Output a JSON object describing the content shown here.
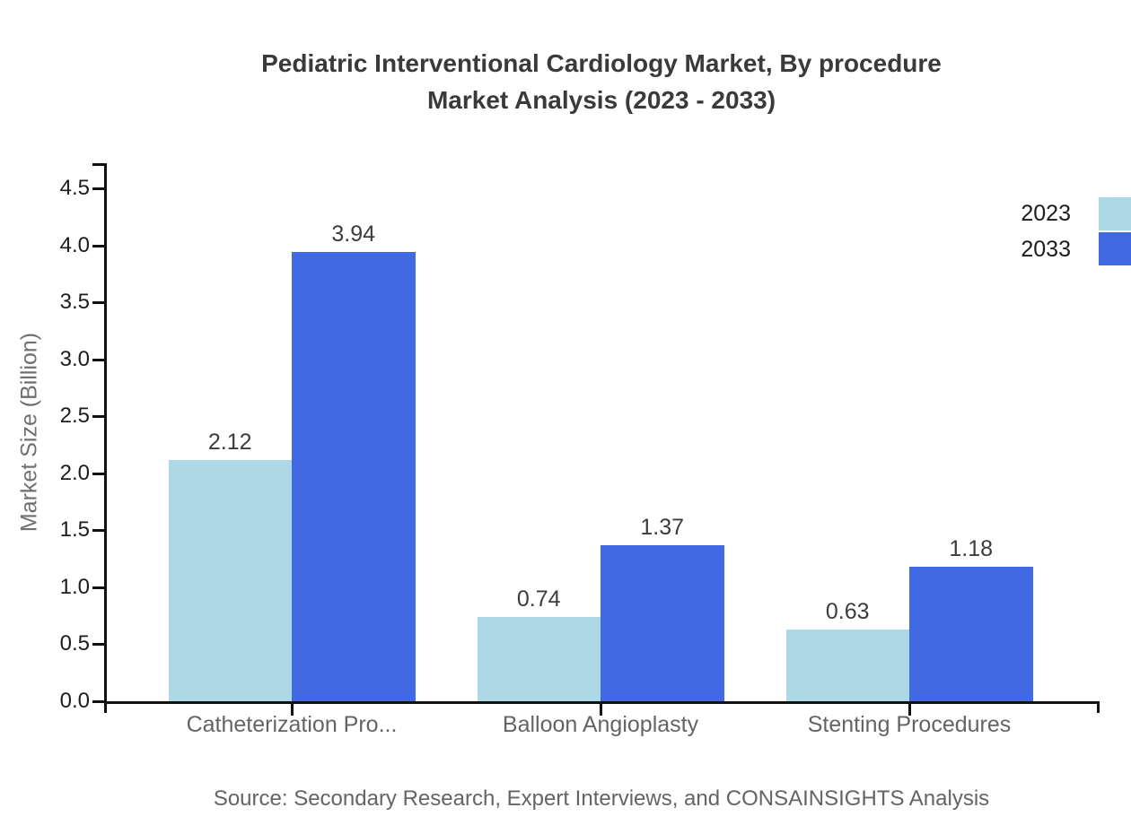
{
  "title": {
    "line1": "Pediatric Interventional Cardiology Market, By procedure",
    "line2": "Market Analysis (2023 - 2033)"
  },
  "chart_data": {
    "type": "bar",
    "categories": [
      "Catheterization Pro...",
      "Balloon Angioplasty",
      "Stenting Procedures"
    ],
    "series": [
      {
        "name": "2023",
        "color": "#ADD8E6",
        "values": [
          2.12,
          0.74,
          0.63
        ]
      },
      {
        "name": "2033",
        "color": "#4169E1",
        "values": [
          3.94,
          1.37,
          1.18
        ]
      }
    ],
    "value_labels": [
      "2.12",
      "3.94",
      "0.74",
      "1.37",
      "0.63",
      "1.18"
    ],
    "xlabel": "",
    "ylabel": "Market Size (Billion)",
    "ylim": [
      0,
      4.7
    ],
    "y_ticks": [
      "0.0",
      "0.5",
      "1.0",
      "1.5",
      "2.0",
      "2.5",
      "3.0",
      "3.5",
      "4.0",
      "4.5"
    ],
    "grid": false,
    "legend_position": "top-right",
    "axis_color": "#111111"
  },
  "source": "Source: Secondary Research, Expert Interviews, and CONSAINSIGHTS Analysis"
}
